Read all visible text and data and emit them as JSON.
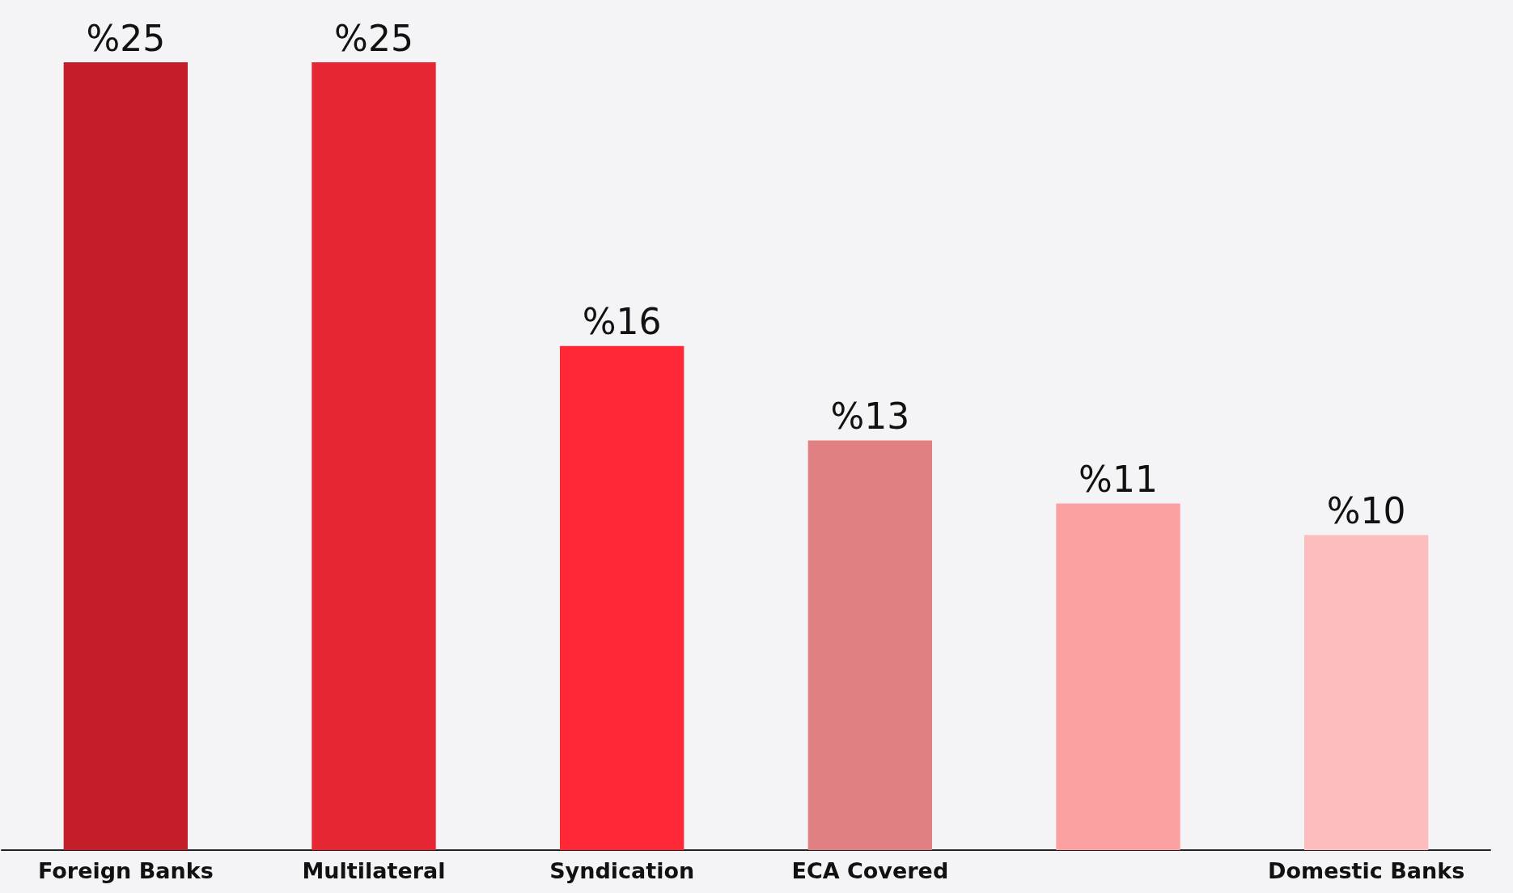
{
  "chart_data": {
    "type": "bar",
    "categories": [
      "Foreign Banks",
      "Multilateral",
      "Syndication",
      "ECA Covered",
      null,
      "Domestic Banks"
    ],
    "values": [
      25,
      25,
      16,
      13,
      11,
      10
    ],
    "colors": [
      "#c41e2a",
      "#e72633",
      "#fe2837",
      "#e08083",
      "#fda0a2",
      "#fdbcbd"
    ],
    "value_labels": [
      "%25",
      "%25",
      "%16",
      "%13",
      "%11",
      "%10"
    ],
    "ylim": [
      0,
      25
    ],
    "tick_labels": "x",
    "grid": false
  }
}
